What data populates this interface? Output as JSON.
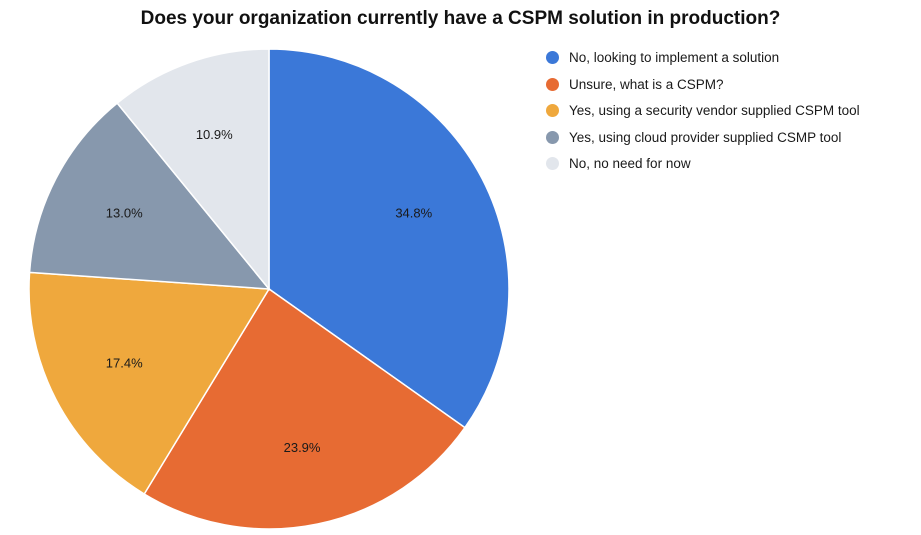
{
  "chart_data": {
    "type": "pie",
    "title": "Does your organization currently have a CSPM solution in production?",
    "legend_position": "right",
    "slices": [
      {
        "label": "No, looking to implement a solution",
        "value": 34.8,
        "display": "34.8%",
        "color": "#3b78d8"
      },
      {
        "label": "Unsure, what is a CSPM?",
        "value": 23.9,
        "display": "23.9%",
        "color": "#e76b33"
      },
      {
        "label": "Yes, using a security vendor supplied CSPM tool",
        "value": 17.4,
        "display": "17.4%",
        "color": "#efa83d"
      },
      {
        "label": "Yes, using cloud provider supplied CSMP tool",
        "value": 13.0,
        "display": "13.0%",
        "color": "#8798ad"
      },
      {
        "label": "No, no need for now",
        "value": 10.9,
        "display": "10.9%",
        "color": "#e2e6ec"
      }
    ]
  }
}
